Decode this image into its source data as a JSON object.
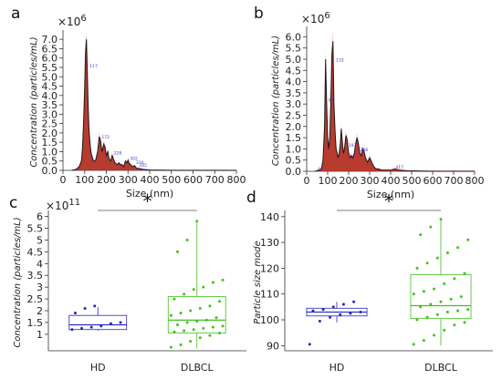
{
  "chart_data": [
    {
      "panel": "a",
      "type": "area",
      "xlabel": "Size (nm)",
      "ylabel": "Concentration (particles/mL)",
      "exponent": "×10",
      "exponent_power": "6",
      "xlim": [
        0,
        800
      ],
      "ylim": [
        0,
        7.3
      ],
      "xticks": [
        0,
        100,
        200,
        300,
        400,
        500,
        600,
        700,
        800
      ],
      "yticks": [
        0,
        0.5,
        1,
        1.5,
        2,
        2.5,
        3,
        3.5,
        4,
        4.5,
        5,
        5.5,
        6,
        6.5,
        7
      ],
      "ytick_labels": [
        "0.0",
        "0.5",
        "1.0",
        "1.5",
        "2.0",
        "2.5",
        "3.0",
        "3.5",
        "4.0",
        "4.5",
        "5.0",
        "5.5",
        "6.0",
        "6.5",
        "7.0"
      ],
      "x": [
        40,
        60,
        75,
        85,
        90,
        95,
        100,
        104,
        108,
        112,
        116,
        120,
        125,
        130,
        140,
        150,
        160,
        167,
        173,
        180,
        188,
        195,
        200,
        207,
        213,
        220,
        227,
        233,
        240,
        250,
        258,
        265,
        272,
        280,
        288,
        295,
        300,
        306,
        312,
        320,
        330,
        340,
        350,
        370,
        400,
        450,
        500,
        600,
        800
      ],
      "values": [
        0,
        0.05,
        0.2,
        0.5,
        1.2,
        2.6,
        4.5,
        6.3,
        7.0,
        5.4,
        3.6,
        2.2,
        1.4,
        0.9,
        0.5,
        0.5,
        1.0,
        1.8,
        1.6,
        1.0,
        1.4,
        1.2,
        0.8,
        1.0,
        0.6,
        0.5,
        0.8,
        0.6,
        0.4,
        0.3,
        0.4,
        0.3,
        0.3,
        0.2,
        0.5,
        0.4,
        0.55,
        0.35,
        0.3,
        0.2,
        0.25,
        0.1,
        0.1,
        0.05,
        0.02,
        0.01,
        0,
        0,
        0
      ],
      "peak_labels": [
        {
          "x": 117,
          "y": 5.5,
          "text": "117"
        },
        {
          "x": 172,
          "y": 1.7,
          "text": "172"
        },
        {
          "x": 228,
          "y": 0.85,
          "text": "228"
        },
        {
          "x": 302,
          "y": 0.55,
          "text": "302"
        },
        {
          "x": 330,
          "y": 0.35,
          "text": "330"
        },
        {
          "x": 345,
          "y": 0.2,
          "text": "345"
        }
      ]
    },
    {
      "panel": "b",
      "type": "area",
      "xlabel": "Size (nm)",
      "ylabel": "Concentration (particles/mL)",
      "exponent": "×10",
      "exponent_power": "6",
      "xlim": [
        0,
        800
      ],
      "ylim": [
        0,
        6.3
      ],
      "xticks": [
        0,
        100,
        200,
        300,
        400,
        500,
        600,
        700,
        800
      ],
      "yticks": [
        0,
        0.5,
        1,
        1.5,
        2,
        2.5,
        3,
        3.5,
        4,
        4.5,
        5,
        5.5,
        6
      ],
      "ytick_labels": [
        "0.0",
        "0.5",
        "1.0",
        "1.5",
        "2.0",
        "2.5",
        "3.0",
        "3.5",
        "4.0",
        "4.5",
        "5.0",
        "5.5",
        "6.0"
      ],
      "x": [
        40,
        60,
        70,
        78,
        85,
        90,
        95,
        100,
        105,
        110,
        115,
        120,
        125,
        130,
        135,
        140,
        145,
        150,
        155,
        160,
        165,
        170,
        175,
        180,
        187,
        193,
        200,
        207,
        213,
        220,
        227,
        233,
        240,
        247,
        253,
        260,
        267,
        273,
        280,
        290,
        300,
        310,
        320,
        330,
        340,
        360,
        400,
        420,
        440,
        480,
        600,
        800
      ],
      "values": [
        0,
        0.05,
        0.1,
        0.5,
        2.0,
        5.0,
        3.0,
        1.5,
        1.0,
        1.5,
        3.0,
        5.2,
        5.8,
        3.0,
        1.8,
        1.0,
        0.8,
        0.6,
        0.8,
        1.2,
        1.9,
        1.3,
        0.8,
        1.0,
        1.6,
        1.4,
        0.8,
        0.6,
        0.7,
        0.6,
        0.8,
        1.2,
        1.5,
        1.2,
        0.8,
        0.7,
        1.0,
        0.9,
        0.6,
        0.4,
        0.6,
        0.4,
        0.2,
        0.1,
        0.1,
        0.05,
        0.05,
        0.1,
        0.05,
        0.02,
        0,
        0
      ],
      "peak_labels": [
        {
          "x": 97,
          "y": 3.1,
          "text": "97"
        },
        {
          "x": 133,
          "y": 4.9,
          "text": "133"
        },
        {
          "x": 193,
          "y": 1.1,
          "text": "193"
        },
        {
          "x": 248,
          "y": 0.9,
          "text": "248"
        },
        {
          "x": 417,
          "y": 0.12,
          "text": "417"
        },
        {
          "x": 46,
          "y": 0.05,
          "text": "46"
        }
      ]
    },
    {
      "panel": "c",
      "type": "box",
      "ylabel": "Concentration (particles/mL)",
      "exponent": "×10",
      "exponent_power": "11",
      "categories": [
        "HD",
        "DLBCL"
      ],
      "ylim": [
        0.3,
        6.1
      ],
      "yticks": [
        1,
        1.5,
        2,
        2.5,
        3,
        3.5,
        4,
        4.5,
        5,
        5.5,
        6
      ],
      "ytick_labels": [
        "1",
        "1.5",
        "2",
        "2.5",
        "3",
        "3.5",
        "4",
        "4.5",
        "5",
        "5.5",
        "6"
      ],
      "significance": "*",
      "series": [
        {
          "name": "HD",
          "color": "#2424c8",
          "box": {
            "whisker_low": 1.15,
            "q1": 1.2,
            "median": 1.4,
            "q3": 1.8,
            "whisker_high": 2.15
          },
          "points": [
            1.2,
            1.25,
            1.3,
            1.35,
            1.45,
            1.5,
            1.9,
            2.1,
            2.2
          ]
        },
        {
          "name": "DLBCL",
          "color": "#44c01f",
          "box": {
            "whisker_low": 0.4,
            "q1": 1.05,
            "median": 1.6,
            "q3": 2.6,
            "whisker_high": 5.8
          },
          "points": [
            0.45,
            0.55,
            0.7,
            0.85,
            0.95,
            1.05,
            1.1,
            1.15,
            1.2,
            1.25,
            1.3,
            1.35,
            1.4,
            1.5,
            1.55,
            1.6,
            1.7,
            1.8,
            1.9,
            2.0,
            2.1,
            2.2,
            2.4,
            2.5,
            2.7,
            2.9,
            3.0,
            3.2,
            3.3,
            4.5,
            5.0,
            5.8
          ]
        }
      ]
    },
    {
      "panel": "d",
      "type": "box",
      "ylabel": "Particle size mode",
      "categories": [
        "HD",
        "DLBCL"
      ],
      "ylim": [
        88,
        141
      ],
      "yticks": [
        90,
        100,
        110,
        120,
        130,
        140
      ],
      "ytick_labels": [
        "90",
        "100",
        "110",
        "120",
        "130",
        "140"
      ],
      "significance": "*",
      "series": [
        {
          "name": "HD",
          "color": "#2424c8",
          "box": {
            "whisker_low": 99,
            "q1": 101.5,
            "median": 103,
            "q3": 104.5,
            "whisker_high": 107
          },
          "points": [
            90.5,
            99.5,
            101,
            102,
            102.5,
            103,
            103.5,
            104,
            105,
            106,
            107
          ]
        },
        {
          "name": "DLBCL",
          "color": "#44c01f",
          "box": {
            "whisker_low": 90,
            "q1": 100.5,
            "median": 105.5,
            "q3": 117.5,
            "whisker_high": 139
          },
          "points": [
            90.5,
            92,
            94,
            96,
            98,
            99,
            100,
            101,
            102,
            103,
            103.5,
            104,
            105,
            106,
            107,
            108,
            109,
            110,
            111,
            112,
            114,
            116,
            118,
            120,
            122,
            124,
            126,
            128,
            131,
            133,
            136,
            139
          ]
        }
      ]
    }
  ]
}
